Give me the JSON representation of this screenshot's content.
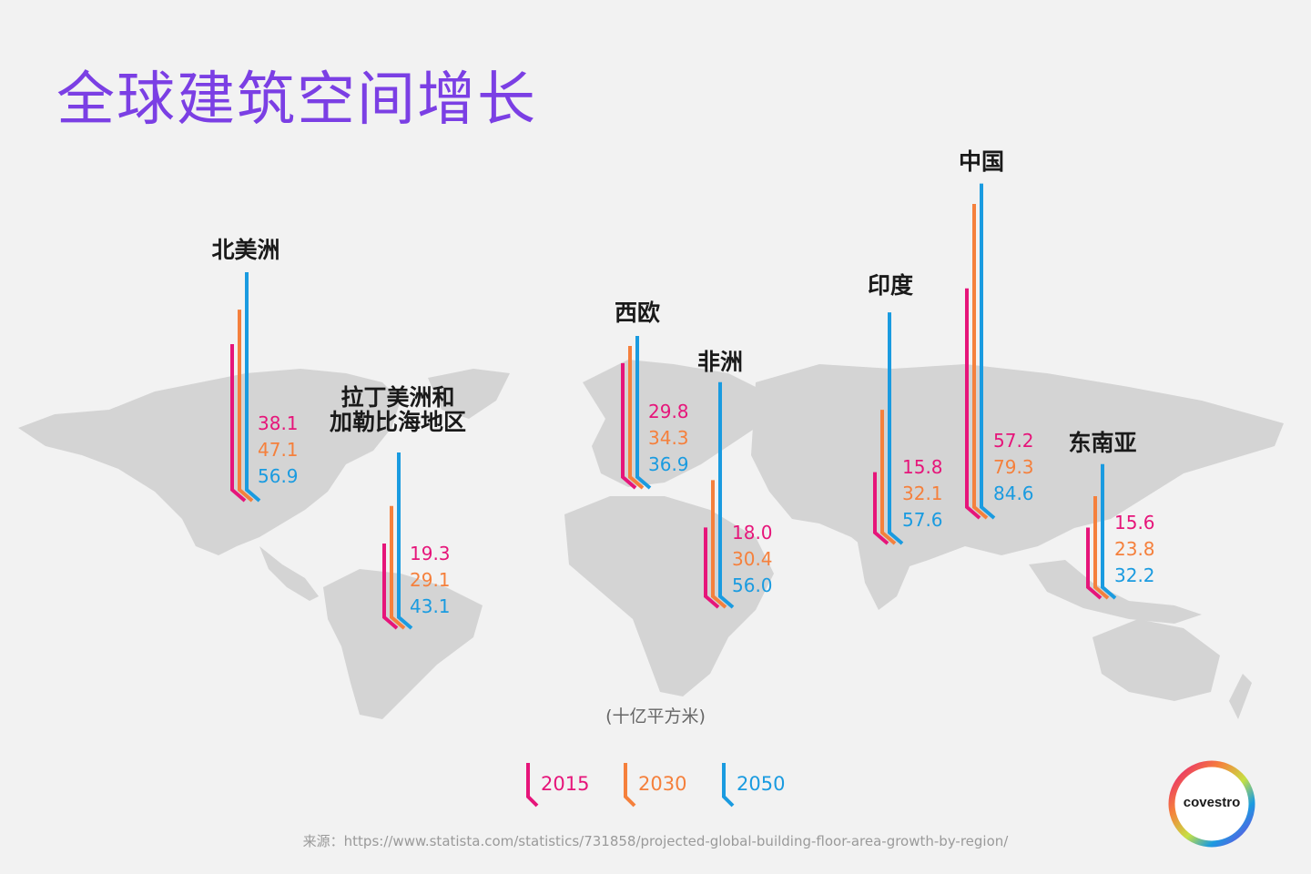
{
  "title": "全球建筑空间增长",
  "unit_label": "(十亿平方米)",
  "source": "来源：https://www.statista.com/statistics/731858/projected-global-building-floor-area-growth-by-region/",
  "brand": "covestro",
  "colors": {
    "y2015": "#e6157a",
    "y2030": "#f5803c",
    "y2050": "#1a9be0",
    "title": "#7b3fe4",
    "map": "#d4d4d4"
  },
  "chart_data": {
    "type": "bar",
    "title": "全球建筑空间增长",
    "unit": "(十亿平方米)",
    "series_names": [
      "2015",
      "2030",
      "2050"
    ],
    "regions": [
      {
        "label": "北美洲",
        "values": [
          38.1,
          47.1,
          56.9
        ]
      },
      {
        "label": "拉丁美洲和\n加勒比海地区",
        "values": [
          19.3,
          29.1,
          43.1
        ]
      },
      {
        "label": "西欧",
        "values": [
          29.8,
          34.3,
          36.9
        ]
      },
      {
        "label": "非洲",
        "values": [
          18.0,
          30.4,
          56.0
        ]
      },
      {
        "label": "印度",
        "values": [
          15.8,
          32.1,
          57.6
        ]
      },
      {
        "label": "中国",
        "values": [
          57.2,
          79.3,
          84.6
        ]
      },
      {
        "label": "东南亚",
        "values": [
          15.6,
          23.8,
          32.2
        ]
      }
    ]
  }
}
